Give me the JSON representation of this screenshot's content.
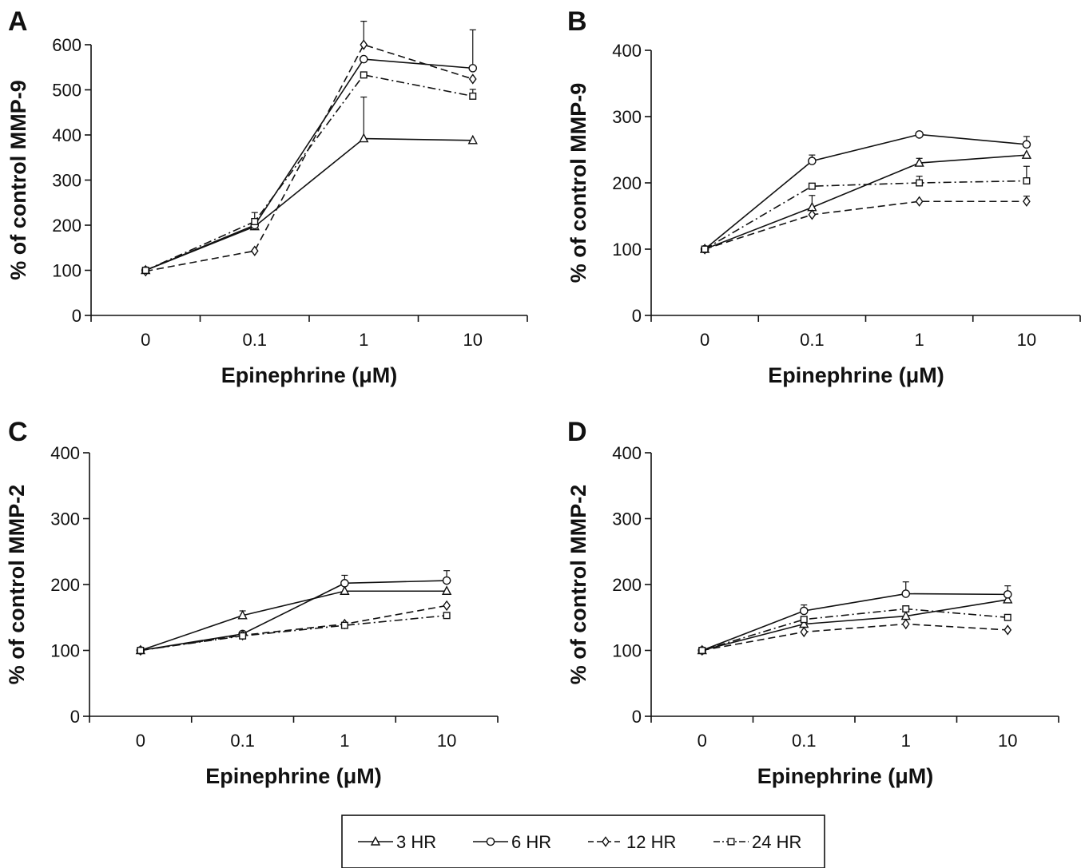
{
  "legend": {
    "items": [
      {
        "label": "3 HR",
        "marker": "triangle",
        "dash": "solid"
      },
      {
        "label": "6 HR",
        "marker": "circle",
        "dash": "solid"
      },
      {
        "label": "12 HR",
        "marker": "diamond",
        "dash": "dashed"
      },
      {
        "label": "24 HR",
        "marker": "square",
        "dash": "dashdot"
      }
    ]
  },
  "chart_data": [
    {
      "panel": "A",
      "type": "line",
      "xlabel": "Epinephrine (μM)",
      "ylabel": "% of control MMP-9",
      "categories": [
        "0",
        "0.1",
        "1",
        "10"
      ],
      "ylim": [
        0,
        600
      ],
      "yticks": [
        0,
        100,
        200,
        300,
        400,
        500,
        600
      ],
      "series": [
        {
          "name": "3 HR",
          "values": [
            100,
            197,
            392,
            388
          ],
          "errors": [
            0,
            0,
            92,
            0
          ]
        },
        {
          "name": "6 HR",
          "values": [
            100,
            200,
            568,
            548
          ],
          "errors": [
            0,
            0,
            0,
            85
          ]
        },
        {
          "name": "12 HR",
          "values": [
            98,
            143,
            600,
            524
          ],
          "errors": [
            0,
            0,
            52,
            0
          ]
        },
        {
          "name": "24 HR",
          "values": [
            100,
            208,
            533,
            486
          ],
          "errors": [
            0,
            20,
            0,
            15
          ]
        }
      ]
    },
    {
      "panel": "B",
      "type": "line",
      "xlabel": "Epinephrine (μM)",
      "ylabel": "% of control MMP-9",
      "categories": [
        "0",
        "0.1",
        "1",
        "10"
      ],
      "ylim": [
        0,
        400
      ],
      "yticks": [
        0,
        100,
        200,
        300,
        400
      ],
      "series": [
        {
          "name": "3 HR",
          "values": [
            100,
            163,
            230,
            242
          ],
          "errors": [
            0,
            18,
            7,
            0
          ]
        },
        {
          "name": "6 HR",
          "values": [
            100,
            233,
            273,
            258
          ],
          "errors": [
            0,
            9,
            0,
            12
          ]
        },
        {
          "name": "12 HR",
          "values": [
            100,
            152,
            172,
            172
          ],
          "errors": [
            0,
            0,
            0,
            8
          ]
        },
        {
          "name": "24 HR",
          "values": [
            100,
            195,
            200,
            203
          ],
          "errors": [
            0,
            0,
            10,
            22
          ]
        }
      ]
    },
    {
      "panel": "C",
      "type": "line",
      "xlabel": "Epinephrine (μM)",
      "ylabel": "% of control MMP-2",
      "categories": [
        "0",
        "0.1",
        "1",
        "10"
      ],
      "ylim": [
        0,
        400
      ],
      "yticks": [
        0,
        100,
        200,
        300,
        400
      ],
      "series": [
        {
          "name": "3 HR",
          "values": [
            100,
            153,
            190,
            190
          ],
          "errors": [
            0,
            7,
            0,
            0
          ]
        },
        {
          "name": "6 HR",
          "values": [
            100,
            125,
            202,
            206
          ],
          "errors": [
            0,
            0,
            12,
            15
          ]
        },
        {
          "name": "12 HR",
          "values": [
            100,
            123,
            140,
            168
          ],
          "errors": [
            0,
            0,
            0,
            0
          ]
        },
        {
          "name": "24 HR",
          "values": [
            100,
            122,
            138,
            153
          ],
          "errors": [
            0,
            0,
            0,
            0
          ]
        }
      ]
    },
    {
      "panel": "D",
      "type": "line",
      "xlabel": "Epinephrine (μM)",
      "ylabel": "% of control MMP-2",
      "categories": [
        "0",
        "0.1",
        "1",
        "10"
      ],
      "ylim": [
        0,
        400
      ],
      "yticks": [
        0,
        100,
        200,
        300,
        400
      ],
      "series": [
        {
          "name": "3 HR",
          "values": [
            100,
            140,
            152,
            177
          ],
          "errors": [
            0,
            0,
            0,
            0
          ]
        },
        {
          "name": "6 HR",
          "values": [
            100,
            160,
            186,
            185
          ],
          "errors": [
            0,
            9,
            18,
            13
          ]
        },
        {
          "name": "12 HR",
          "values": [
            100,
            128,
            140,
            131
          ],
          "errors": [
            0,
            0,
            0,
            0
          ]
        },
        {
          "name": "24 HR",
          "values": [
            100,
            147,
            163,
            150
          ],
          "errors": [
            0,
            0,
            0,
            0
          ]
        }
      ]
    }
  ]
}
